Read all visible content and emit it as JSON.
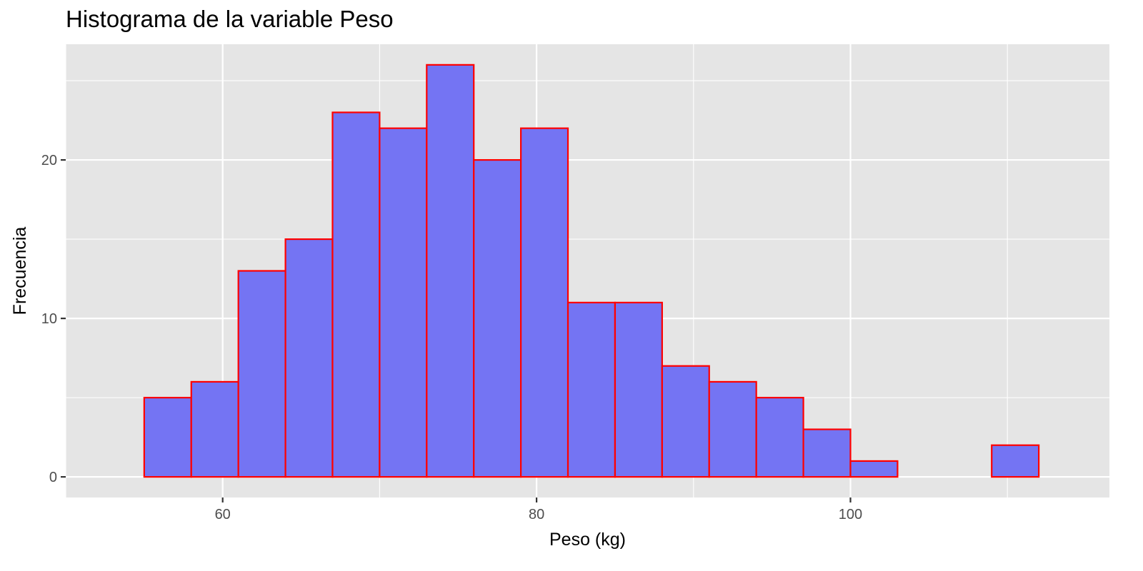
{
  "chart_data": {
    "type": "bar",
    "title": "Histograma de la variable Peso",
    "xlabel": "Peso (kg)",
    "ylabel": "Frecuencia",
    "bin_width": 3,
    "bins": [
      {
        "x0": 55,
        "x1": 58,
        "count": 5
      },
      {
        "x0": 58,
        "x1": 61,
        "count": 6
      },
      {
        "x0": 61,
        "x1": 64,
        "count": 13
      },
      {
        "x0": 64,
        "x1": 67,
        "count": 15
      },
      {
        "x0": 67,
        "x1": 70,
        "count": 23
      },
      {
        "x0": 70,
        "x1": 73,
        "count": 22
      },
      {
        "x0": 73,
        "x1": 76,
        "count": 26
      },
      {
        "x0": 76,
        "x1": 79,
        "count": 20
      },
      {
        "x0": 79,
        "x1": 82,
        "count": 22
      },
      {
        "x0": 82,
        "x1": 85,
        "count": 11
      },
      {
        "x0": 85,
        "x1": 88,
        "count": 11
      },
      {
        "x0": 88,
        "x1": 91,
        "count": 7
      },
      {
        "x0": 91,
        "x1": 94,
        "count": 6
      },
      {
        "x0": 94,
        "x1": 97,
        "count": 5
      },
      {
        "x0": 97,
        "x1": 100,
        "count": 3
      },
      {
        "x0": 100,
        "x1": 103,
        "count": 1
      },
      {
        "x0": 103,
        "x1": 106,
        "count": 0
      },
      {
        "x0": 106,
        "x1": 109,
        "count": 0
      },
      {
        "x0": 109,
        "x1": 112,
        "count": 2
      },
      {
        "x0": 112,
        "x1": 115,
        "count": 0
      }
    ],
    "xlim": [
      50,
      116.5
    ],
    "ylim": [
      -1.3,
      27.3
    ],
    "x_ticks": [
      60,
      80,
      100
    ],
    "x_tick_labels": [
      "60",
      "80",
      "100"
    ],
    "y_ticks": [
      0,
      10,
      20
    ],
    "y_tick_labels": [
      "0",
      "10",
      "20"
    ],
    "grid": true,
    "colors": {
      "panel_background": "#e5e5e5",
      "grid": "#ffffff",
      "bar_fill": "#7474f3",
      "bar_outline": "#ff0000",
      "tick_label": "#4d4d4d",
      "tick_mark": "#333333"
    }
  }
}
